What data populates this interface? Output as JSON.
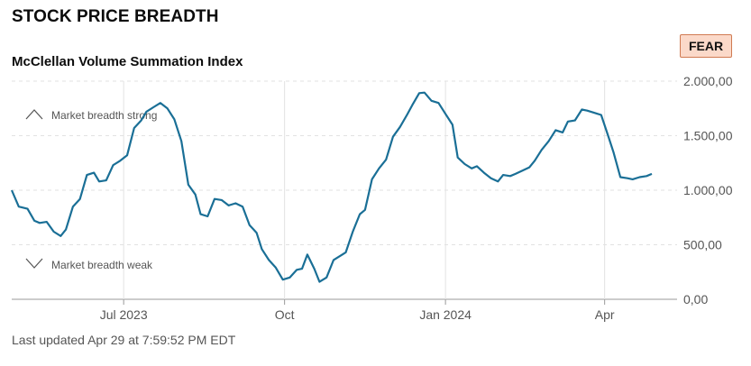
{
  "header": {
    "title": "STOCK PRICE BREADTH",
    "subtitle": "McClellan Volume Summation Index",
    "badge": "FEAR"
  },
  "footer": {
    "updated": "Last updated Apr 29 at 7:59:52 PM EDT"
  },
  "colors": {
    "line": "#1a6f96",
    "badge_bg": "#fbd9c9",
    "badge_border": "#d07a52"
  },
  "icons": {
    "strong": "chevron-up-icon",
    "weak": "chevron-down-icon"
  },
  "chart_data": {
    "type": "line",
    "title": "",
    "xlabel": "",
    "ylabel": "",
    "ylim": [
      0,
      2000
    ],
    "grid": true,
    "x_ticks": [
      {
        "label": "Jul 2023",
        "date": "2023-07-01"
      },
      {
        "label": "Oct",
        "date": "2023-10-01"
      },
      {
        "label": "Jan 2024",
        "date": "2024-01-01"
      },
      {
        "label": "Apr",
        "date": "2024-04-01"
      }
    ],
    "y_ticks": [
      {
        "value": 2000,
        "label": "2.000,00"
      },
      {
        "value": 1500,
        "label": "1.500,00"
      },
      {
        "value": 1000,
        "label": "1.000,00"
      },
      {
        "value": 500,
        "label": "500,00"
      },
      {
        "value": 0,
        "label": "0,00"
      }
    ],
    "annotations": {
      "strong": "Market breadth strong",
      "weak": "Market breadth weak"
    },
    "series": [
      {
        "points": [
          [
            "2023-04-28",
            1000
          ],
          [
            "2023-05-02",
            850
          ],
          [
            "2023-05-07",
            830
          ],
          [
            "2023-05-11",
            720
          ],
          [
            "2023-05-14",
            700
          ],
          [
            "2023-05-18",
            710
          ],
          [
            "2023-05-22",
            620
          ],
          [
            "2023-05-26",
            580
          ],
          [
            "2023-05-29",
            640
          ],
          [
            "2023-06-02",
            850
          ],
          [
            "2023-06-06",
            920
          ],
          [
            "2023-06-10",
            1140
          ],
          [
            "2023-06-14",
            1160
          ],
          [
            "2023-06-17",
            1080
          ],
          [
            "2023-06-21",
            1090
          ],
          [
            "2023-06-25",
            1230
          ],
          [
            "2023-06-29",
            1270
          ],
          [
            "2023-07-03",
            1320
          ],
          [
            "2023-07-07",
            1570
          ],
          [
            "2023-07-11",
            1640
          ],
          [
            "2023-07-14",
            1720
          ],
          [
            "2023-07-18",
            1760
          ],
          [
            "2023-07-22",
            1800
          ],
          [
            "2023-07-26",
            1750
          ],
          [
            "2023-07-30",
            1650
          ],
          [
            "2023-08-03",
            1450
          ],
          [
            "2023-08-07",
            1050
          ],
          [
            "2023-08-11",
            960
          ],
          [
            "2023-08-14",
            780
          ],
          [
            "2023-08-18",
            760
          ],
          [
            "2023-08-22",
            920
          ],
          [
            "2023-08-26",
            910
          ],
          [
            "2023-08-30",
            860
          ],
          [
            "2023-09-03",
            880
          ],
          [
            "2023-09-07",
            850
          ],
          [
            "2023-09-11",
            680
          ],
          [
            "2023-09-15",
            610
          ],
          [
            "2023-09-18",
            460
          ],
          [
            "2023-09-22",
            360
          ],
          [
            "2023-09-26",
            290
          ],
          [
            "2023-09-30",
            180
          ],
          [
            "2023-10-04",
            200
          ],
          [
            "2023-10-08",
            270
          ],
          [
            "2023-10-11",
            280
          ],
          [
            "2023-10-14",
            410
          ],
          [
            "2023-10-18",
            280
          ],
          [
            "2023-10-21",
            160
          ],
          [
            "2023-10-25",
            200
          ],
          [
            "2023-10-29",
            360
          ],
          [
            "2023-11-01",
            390
          ],
          [
            "2023-11-05",
            430
          ],
          [
            "2023-11-09",
            620
          ],
          [
            "2023-11-13",
            780
          ],
          [
            "2023-11-16",
            820
          ],
          [
            "2023-11-20",
            1100
          ],
          [
            "2023-11-24",
            1200
          ],
          [
            "2023-11-28",
            1280
          ],
          [
            "2023-12-02",
            1490
          ],
          [
            "2023-12-06",
            1580
          ],
          [
            "2023-12-10",
            1690
          ],
          [
            "2023-12-13",
            1780
          ],
          [
            "2023-12-17",
            1890
          ],
          [
            "2023-12-20",
            1895
          ],
          [
            "2023-12-24",
            1820
          ],
          [
            "2023-12-28",
            1800
          ],
          [
            "2024-01-01",
            1700
          ],
          [
            "2024-01-05",
            1600
          ],
          [
            "2024-01-08",
            1300
          ],
          [
            "2024-01-12",
            1240
          ],
          [
            "2024-01-16",
            1200
          ],
          [
            "2024-01-19",
            1220
          ],
          [
            "2024-01-23",
            1160
          ],
          [
            "2024-01-27",
            1110
          ],
          [
            "2024-01-31",
            1080
          ],
          [
            "2024-02-03",
            1140
          ],
          [
            "2024-02-07",
            1130
          ],
          [
            "2024-02-10",
            1150
          ],
          [
            "2024-02-14",
            1180
          ],
          [
            "2024-02-18",
            1210
          ],
          [
            "2024-02-21",
            1270
          ],
          [
            "2024-02-25",
            1370
          ],
          [
            "2024-02-29",
            1450
          ],
          [
            "2024-03-04",
            1550
          ],
          [
            "2024-03-08",
            1530
          ],
          [
            "2024-03-11",
            1630
          ],
          [
            "2024-03-15",
            1640
          ],
          [
            "2024-03-19",
            1740
          ],
          [
            "2024-03-22",
            1730
          ],
          [
            "2024-03-26",
            1710
          ],
          [
            "2024-03-30",
            1690
          ],
          [
            "2024-04-03",
            1500
          ],
          [
            "2024-04-06",
            1350
          ],
          [
            "2024-04-10",
            1120
          ],
          [
            "2024-04-14",
            1110
          ],
          [
            "2024-04-17",
            1100
          ],
          [
            "2024-04-21",
            1120
          ],
          [
            "2024-04-25",
            1130
          ],
          [
            "2024-04-28",
            1150
          ]
        ]
      }
    ]
  }
}
